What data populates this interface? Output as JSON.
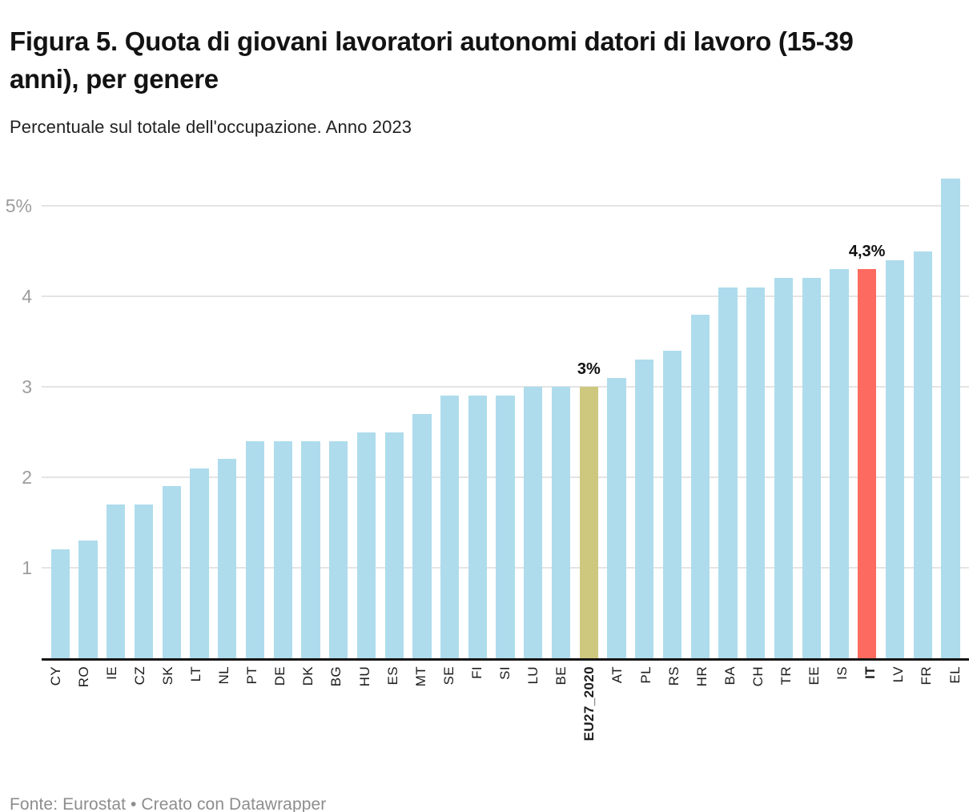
{
  "header": {
    "title": "Figura 5. Quota di giovani lavoratori autonomi datori di lavoro (15-39 anni), per genere",
    "subtitle": "Percentuale sul totale dell'occupazione. Anno 2023"
  },
  "chart_data": {
    "type": "bar",
    "title": "Figura 5. Quota di giovani lavoratori autonomi datori di lavoro (15-39 anni), per genere",
    "subtitle": "Percentuale sul totale dell'occupazione. Anno 2023",
    "xlabel": "",
    "ylabel": "",
    "grid": true,
    "ylim": [
      0,
      5.31
    ],
    "categories": [
      "CY",
      "RO",
      "IE",
      "CZ",
      "SK",
      "LT",
      "NL",
      "PT",
      "DE",
      "DK",
      "BG",
      "HU",
      "ES",
      "MT",
      "SE",
      "FI",
      "SI",
      "LU",
      "BE",
      "EU27_2020",
      "AT",
      "PL",
      "RS",
      "HR",
      "BA",
      "CH",
      "TR",
      "EE",
      "IS",
      "IT",
      "LV",
      "FR",
      "EL"
    ],
    "values": [
      1.2,
      1.3,
      1.7,
      1.7,
      1.9,
      2.1,
      2.2,
      2.4,
      2.4,
      2.4,
      2.4,
      2.5,
      2.5,
      2.7,
      2.9,
      2.9,
      2.9,
      3.0,
      3.0,
      3.0,
      3.1,
      3.3,
      3.4,
      3.8,
      4.1,
      4.1,
      4.2,
      4.2,
      4.3,
      4.3,
      4.4,
      4.5,
      5.3
    ],
    "bar_color": "#aedcec",
    "yticks": [
      {
        "value": 1,
        "label": "1"
      },
      {
        "value": 2,
        "label": "2"
      },
      {
        "value": 3,
        "label": "3"
      },
      {
        "value": 4,
        "label": "4"
      },
      {
        "value": 5,
        "label": "5%"
      }
    ],
    "highlights": [
      {
        "category": "EU27_2020",
        "color": "#cdc87e",
        "value_label": "3%",
        "bold_axis_label": true
      },
      {
        "category": "IT",
        "color": "#fd6a60",
        "value_label": "4,3%",
        "bold_axis_label": true
      }
    ]
  },
  "colors": {
    "default_bar": "#aedcec",
    "eu_bar": "#cdc87e",
    "it_bar": "#fd6a60",
    "gridline": "#e4e4e4",
    "axis_line": "#151515",
    "ytick_text": "#9d9d9d",
    "xtick_text": "#1c1c1c"
  },
  "footer": {
    "text": "Fonte: Eurostat • Creato con Datawrapper"
  }
}
